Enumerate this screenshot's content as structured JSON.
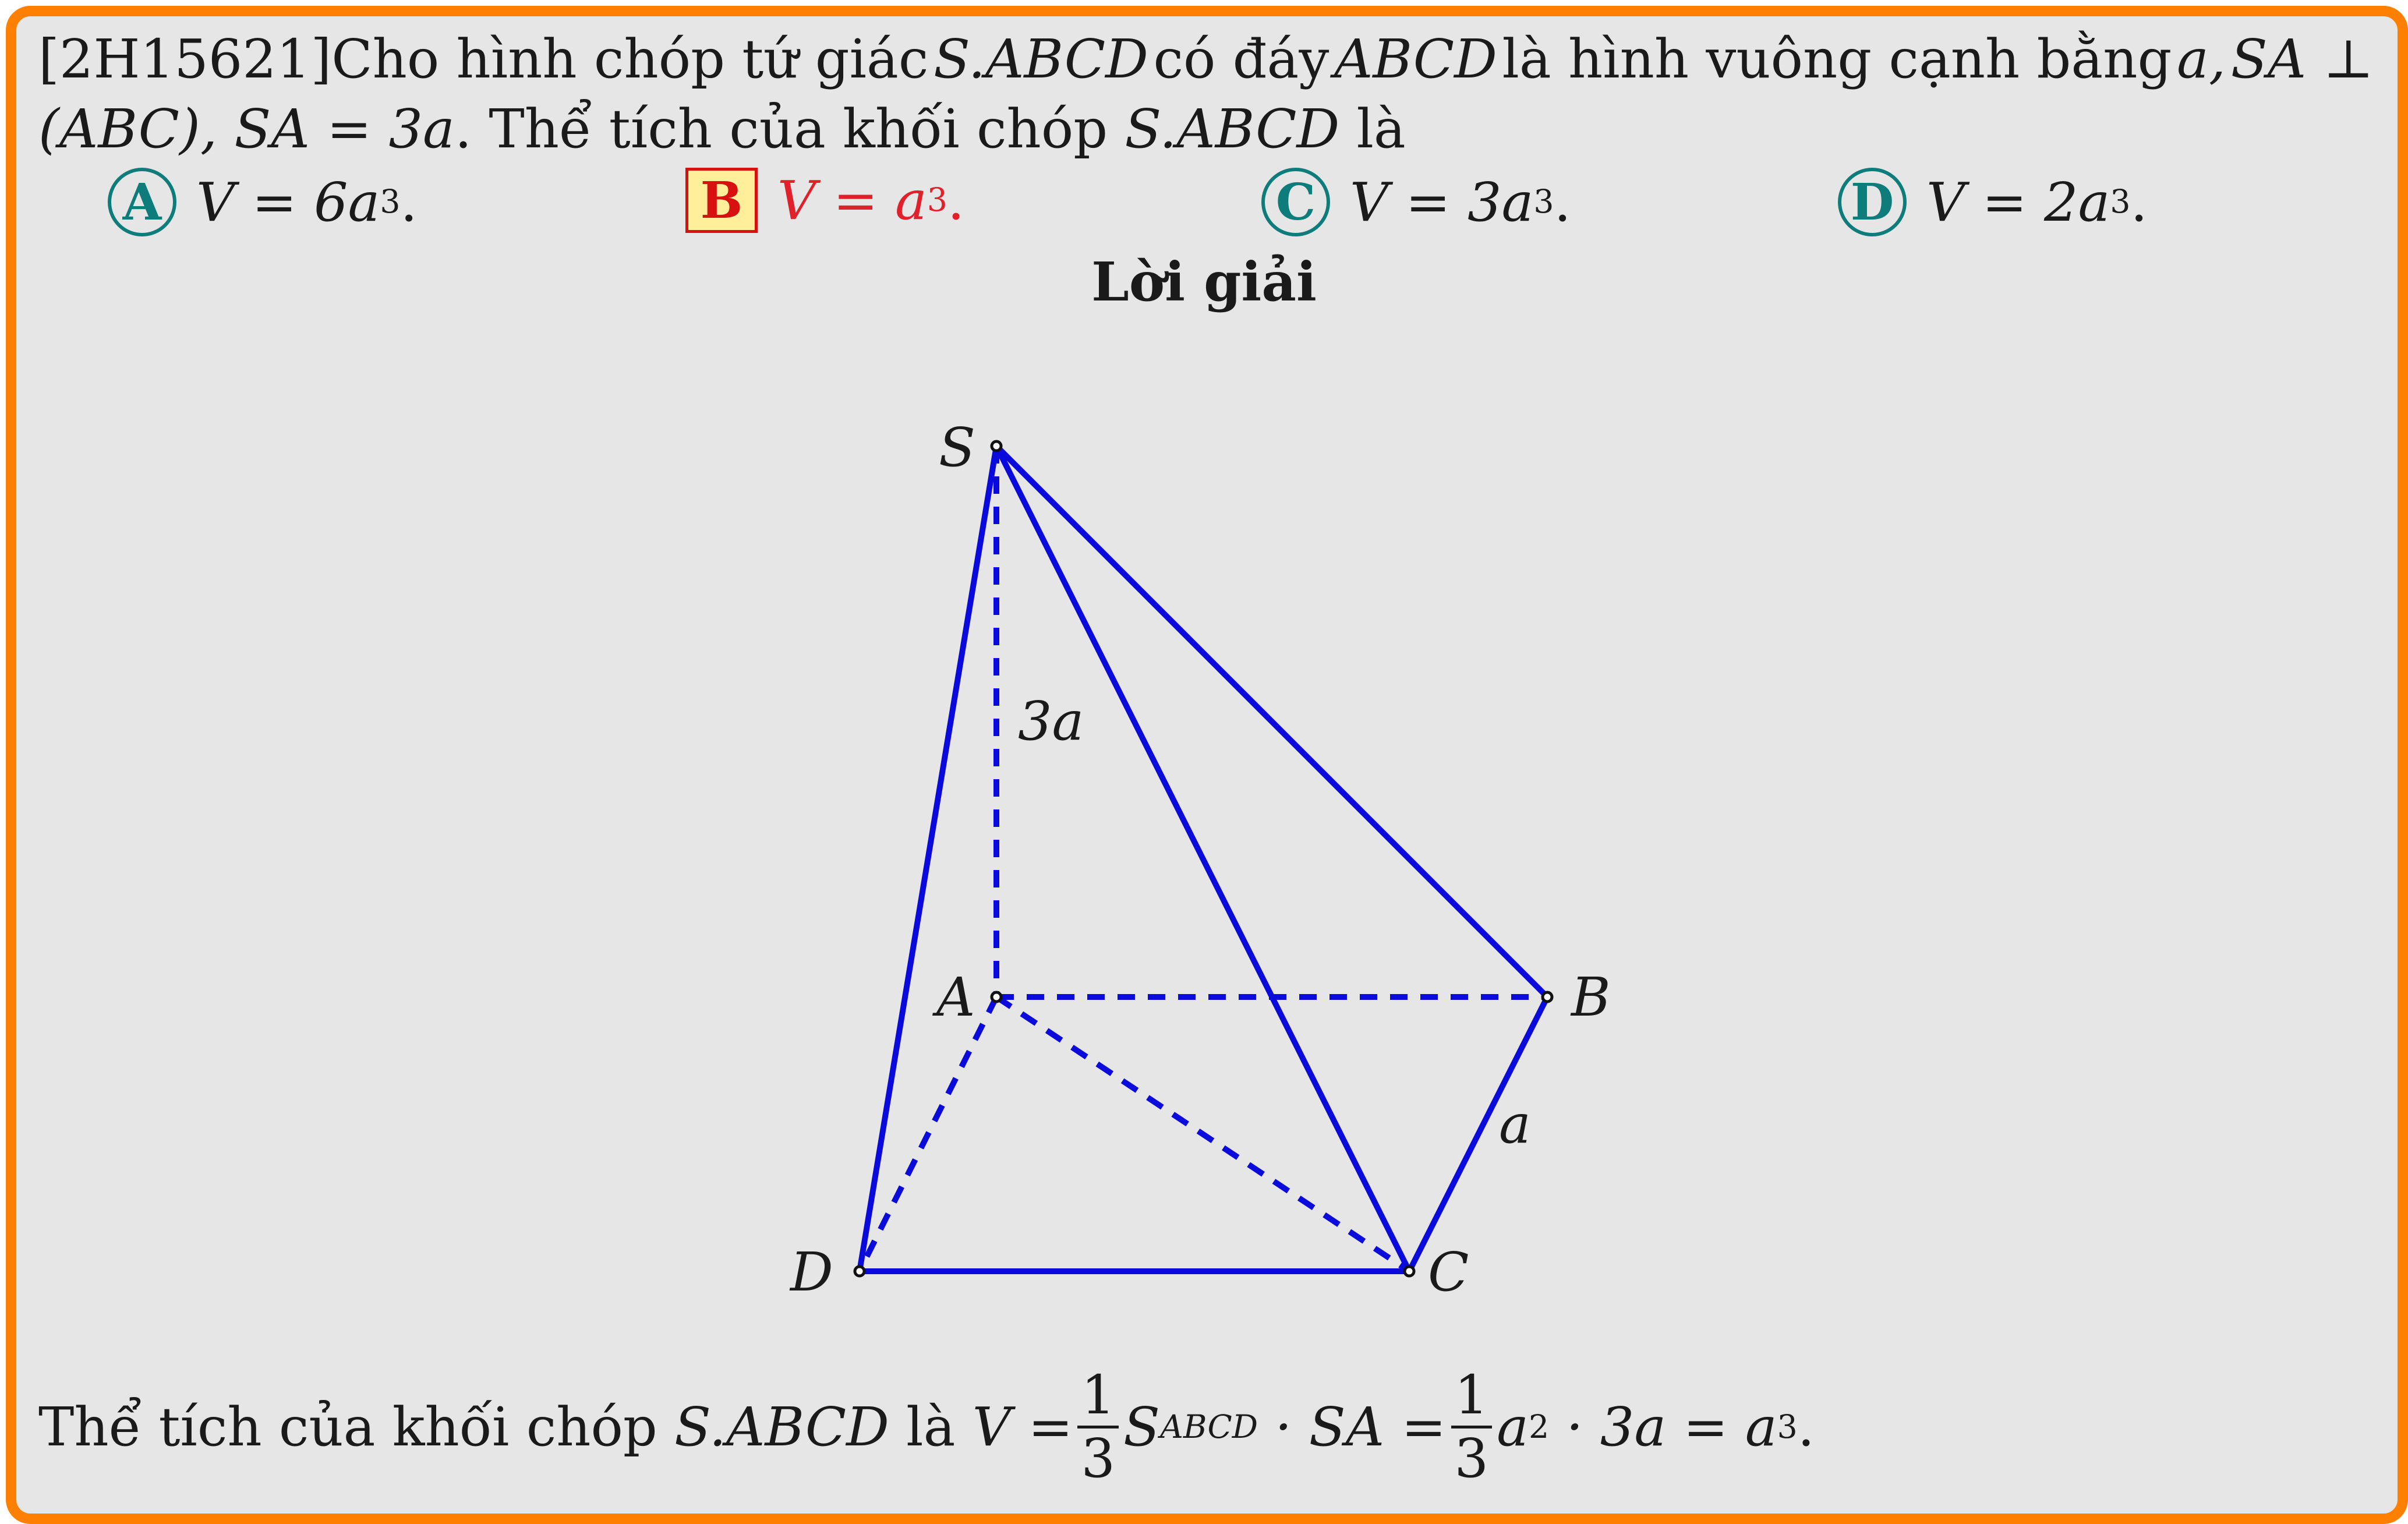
{
  "question": {
    "id": "[2H15621]",
    "line1_parts": [
      "Cho hình chóp tứ giác",
      "S.ABCD",
      "có đáy",
      "ABCD",
      "là hình vuông cạnh bằng",
      "a,",
      "SA ⊥"
    ],
    "line2_parts": [
      "(ABC), SA = 3a",
      ". Thể tích của khối chóp",
      "S.ABCD",
      "là"
    ]
  },
  "choices": [
    {
      "letter": "A",
      "expr_main": "V = 6a",
      "exp": "3",
      "tail": ".",
      "correct": false
    },
    {
      "letter": "B",
      "expr_main": "V = a",
      "exp": "3",
      "tail": ".",
      "correct": true
    },
    {
      "letter": "C",
      "expr_main": "V = 3a",
      "exp": "3",
      "tail": ".",
      "correct": false
    },
    {
      "letter": "D",
      "expr_main": "V = 2a",
      "exp": "3",
      "tail": ".",
      "correct": false
    }
  ],
  "solution_heading": "Lời giải",
  "figure": {
    "labels": {
      "S": "S",
      "A": "A",
      "B": "B",
      "C": "C",
      "D": "D",
      "height": "3a",
      "side": "a"
    },
    "line_color": "#0a0adc"
  },
  "solution": {
    "prefix": "Thể tích của khối chóp",
    "solid": "S.ABCD",
    "is": "là",
    "v_eq": "V =",
    "frac_num": "1",
    "frac_den": "3",
    "S_letter": "S",
    "S_sub": "ABCD",
    "mid": "· SA =",
    "a_part": "a",
    "a_exp": "2",
    "tail": "· 3a = a",
    "tail_exp": "3",
    "end": "."
  },
  "colors": {
    "frame": "#ff8000",
    "background": "#e6e6e6",
    "badge": "#0e7c7b",
    "correct": "#d81010"
  }
}
